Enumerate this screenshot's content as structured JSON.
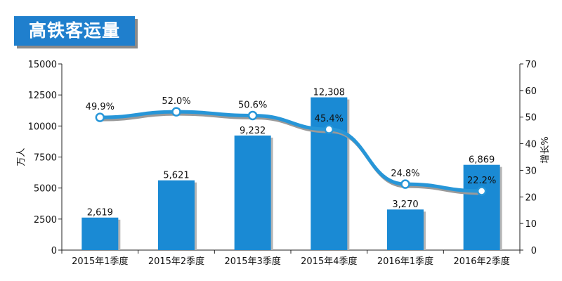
{
  "chart_data": {
    "type": "bar+line",
    "title": "高铁客运量",
    "categories": [
      "2015年1季度",
      "2015年2季度",
      "2015年3季度",
      "2015年4季度",
      "2016年1季度",
      "2016年2季度"
    ],
    "series": [
      {
        "type": "bar",
        "axis": "left",
        "values": [
          2619,
          5621,
          9232,
          12308,
          3270,
          6869
        ],
        "labels": [
          "2,619",
          "5,621",
          "9,232",
          "12,308",
          "3,270",
          "6,869"
        ],
        "color": "#1a8ad4"
      },
      {
        "type": "line",
        "axis": "right",
        "values": [
          49.9,
          52.0,
          50.6,
          45.4,
          24.8,
          22.2
        ],
        "labels": [
          "49.9%",
          "52.0%",
          "50.6%",
          "45.4%",
          "24.8%",
          "22.2%"
        ],
        "color": "#2796d8"
      }
    ],
    "ylabel": "万人",
    "y2label": "增长%",
    "ylim": [
      0,
      15000
    ],
    "y2lim": [
      0,
      70
    ],
    "yticks": [
      "0",
      "2500",
      "5000",
      "7500",
      "10000",
      "12500",
      "15000"
    ],
    "y2ticks": [
      "0",
      "10",
      "20",
      "30",
      "40",
      "50",
      "60",
      "70"
    ],
    "grid": false,
    "legend": "none"
  }
}
